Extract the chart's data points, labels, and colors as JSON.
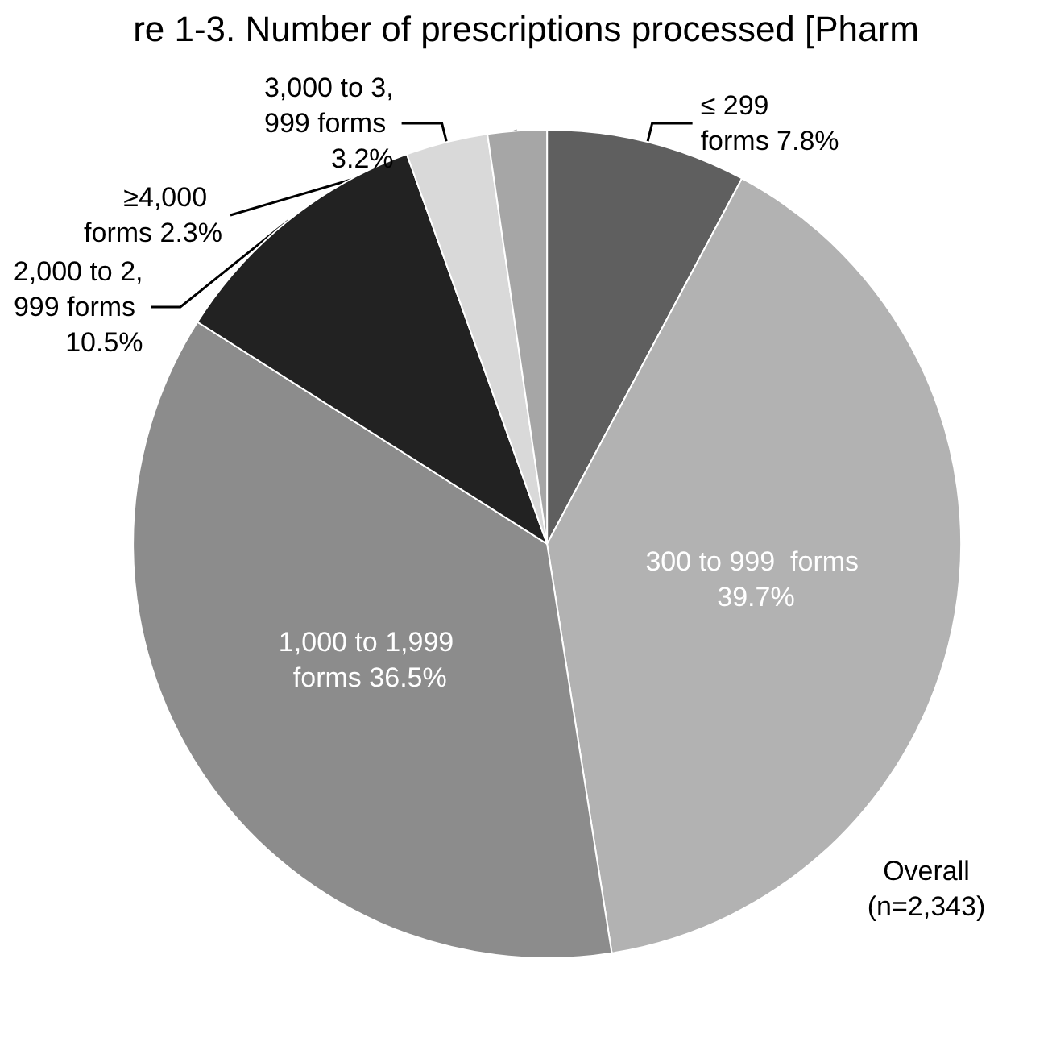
{
  "chart_data": {
    "type": "pie",
    "title": "re 1-3. Number of prescriptions processed [Pharm",
    "categories": [
      "≤ 299 forms",
      "300 to 999  forms",
      "1,000 to 1,999 forms",
      "2,000 to 2,999 forms",
      "3,000 to 3,999 forms",
      "≥4,000  forms"
    ],
    "values": [
      7.8,
      39.7,
      36.5,
      10.5,
      3.2,
      2.3
    ],
    "colors": [
      "#5f5f5f",
      "#b2b2b2",
      "#8c8c8c",
      "#222222",
      "#d9d9d9",
      "#a6a6a6"
    ],
    "value_labels": [
      "7.8%",
      "39.7%",
      "36.5%",
      "10.5%",
      "3.2%",
      "2.3%"
    ],
    "annotations": [
      "Overall (n=2,343)"
    ],
    "legend": false
  }
}
